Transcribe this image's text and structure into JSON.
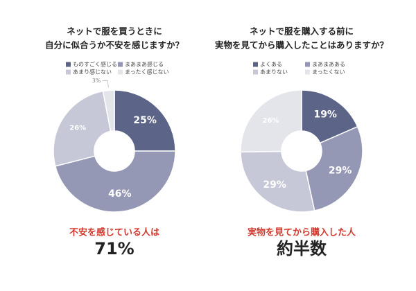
{
  "chart_data": [
    {
      "type": "donut",
      "title": [
        "ネットで服を買うときに",
        "自分に似合うか不安を感じますか？"
      ],
      "categories": [
        "ものすごく感じる",
        "まあまあ感じる",
        "あまり感じない",
        "まったく感じない"
      ],
      "values": [
        25,
        46,
        26,
        3
      ],
      "value_labels": [
        "25%",
        "46%",
        "26%",
        "3%"
      ],
      "colors": [
        "#5c6488",
        "#9598b4",
        "#c6c8d7",
        "#e4e5eb"
      ],
      "summary_text": "不安を感じている人は",
      "summary_value": "71%"
    },
    {
      "type": "donut",
      "title": [
        "ネットで服を購入する前に",
        "実物を見てから購入したことはありますか？"
      ],
      "categories": [
        "よくある",
        "まあまあある",
        "あまりない",
        "まったくない"
      ],
      "values": [
        19,
        29,
        29,
        26
      ],
      "value_labels": [
        "19%",
        "29%",
        "29%",
        "26%"
      ],
      "colors": [
        "#5c6488",
        "#9598b4",
        "#c6c8d7",
        "#e4e5eb"
      ],
      "summary_text": "実物を見てから購入した人",
      "summary_value": "約半数"
    }
  ]
}
